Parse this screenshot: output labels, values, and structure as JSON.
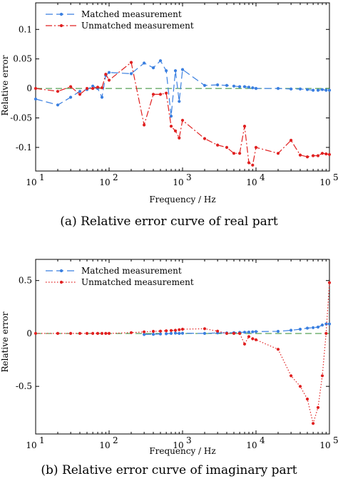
{
  "colors": {
    "matched": "#3a7fe0",
    "unmatched": "#e02020",
    "reference": "#2e8b2e"
  },
  "chart_data": [
    {
      "type": "line",
      "caption": "(a) Relative error curve of real part",
      "xlabel": "Frequency / Hz",
      "ylabel": "Relative error",
      "xscale": "log",
      "xlim": [
        10,
        100000
      ],
      "ylim": [
        -0.14,
        0.145
      ],
      "x_tick_labels": [
        {
          "value": 10,
          "base": "10",
          "exp": "1"
        },
        {
          "value": 100,
          "base": "10",
          "exp": "2"
        },
        {
          "value": 1000,
          "base": "10",
          "exp": "3"
        },
        {
          "value": 10000,
          "base": "10",
          "exp": "4"
        },
        {
          "value": 100000,
          "base": "10",
          "exp": "5"
        }
      ],
      "y_tick_labels": [
        "0.1",
        "0.05",
        "0",
        "-0.05",
        "-0.1"
      ],
      "y_tick_values": [
        0.1,
        0.05,
        0,
        -0.05,
        -0.1
      ],
      "reference_line_y": 0,
      "legend_position": "top-left",
      "series": [
        {
          "name": "Matched measurement",
          "style": "dashed",
          "x": [
            10,
            20,
            30,
            40,
            50,
            60,
            70,
            80,
            90,
            100,
            200,
            300,
            400,
            500,
            600,
            700,
            800,
            900,
            1000,
            2000,
            3000,
            4000,
            5000,
            6000,
            7000,
            8000,
            9000,
            10000,
            20000,
            30000,
            40000,
            50000,
            60000,
            70000,
            80000,
            90000,
            100000
          ],
          "y": [
            -0.018,
            -0.028,
            -0.015,
            -0.005,
            -0.002,
            0.004,
            0.0,
            -0.015,
            0.022,
            0.027,
            0.025,
            0.043,
            0.035,
            0.047,
            0.03,
            -0.047,
            0.03,
            -0.022,
            0.032,
            0.005,
            0.006,
            0.005,
            0.004,
            0.003,
            0.003,
            0.002,
            0.001,
            0.0,
            0.0,
            -0.001,
            -0.001,
            -0.002,
            -0.003,
            -0.003,
            -0.002,
            -0.003,
            -0.003
          ],
          "marker": "dot"
        },
        {
          "name": "Unmatched measurement",
          "style": "dash-dot",
          "x": [
            10,
            20,
            30,
            40,
            50,
            60,
            70,
            80,
            90,
            100,
            200,
            300,
            400,
            500,
            600,
            700,
            800,
            900,
            1000,
            2000,
            3000,
            4000,
            5000,
            6000,
            7000,
            8000,
            9000,
            10000,
            20000,
            30000,
            40000,
            50000,
            60000,
            70000,
            80000,
            90000,
            100000
          ],
          "y": [
            0.0,
            -0.005,
            0.003,
            -0.01,
            0.0,
            0.0,
            0.002,
            0.001,
            0.024,
            0.014,
            0.044,
            -0.062,
            -0.01,
            -0.01,
            -0.008,
            -0.064,
            -0.072,
            -0.084,
            -0.054,
            -0.085,
            -0.096,
            -0.1,
            -0.11,
            -0.11,
            -0.064,
            -0.126,
            -0.13,
            -0.1,
            -0.11,
            -0.088,
            -0.113,
            -0.116,
            -0.114,
            -0.114,
            -0.11,
            -0.111,
            -0.112
          ],
          "marker": "dot"
        }
      ]
    },
    {
      "type": "line",
      "caption": "(b) Relative error curve of imaginary part",
      "xlabel": "Frequency / Hz",
      "ylabel": "Relative error",
      "xscale": "log",
      "xlim": [
        10,
        100000
      ],
      "ylim": [
        -0.95,
        0.7
      ],
      "x_tick_labels": [
        {
          "value": 10,
          "base": "10",
          "exp": "1"
        },
        {
          "value": 100,
          "base": "10",
          "exp": "2"
        },
        {
          "value": 1000,
          "base": "10",
          "exp": "3"
        },
        {
          "value": 10000,
          "base": "10",
          "exp": "4"
        },
        {
          "value": 100000,
          "base": "10",
          "exp": "5"
        }
      ],
      "y_tick_labels": [
        "0.5",
        "0",
        "-0.5"
      ],
      "y_tick_values": [
        0.5,
        0,
        -0.5
      ],
      "reference_line_y": 0,
      "legend_position": "top-left",
      "series": [
        {
          "name": "Matched measurement",
          "style": "dashed",
          "x": [
            300,
            400,
            500,
            600,
            700,
            800,
            900,
            1000,
            2000,
            3000,
            4000,
            5000,
            6000,
            7000,
            8000,
            9000,
            10000,
            20000,
            30000,
            40000,
            50000,
            60000,
            70000,
            80000,
            90000,
            100000
          ],
          "y": [
            -0.01,
            -0.008,
            -0.005,
            -0.003,
            0.0,
            0.003,
            0.0,
            0.002,
            0.0,
            0.005,
            0.005,
            0.008,
            0.01,
            0.012,
            0.013,
            0.015,
            0.018,
            0.02,
            0.03,
            0.04,
            0.05,
            0.055,
            0.06,
            0.08,
            0.09,
            0.09
          ],
          "marker": "dot"
        },
        {
          "name": "Unmatched measurement",
          "style": "dotted",
          "x": [
            10,
            20,
            30,
            40,
            50,
            60,
            70,
            80,
            90,
            100,
            200,
            300,
            400,
            500,
            600,
            700,
            800,
            900,
            1000,
            2000,
            3000,
            4000,
            5000,
            6000,
            7000,
            8000,
            9000,
            10000,
            20000,
            30000,
            40000,
            50000,
            60000,
            70000,
            80000,
            90000,
            100000
          ],
          "y": [
            0.0,
            0.0,
            0.0,
            0.0,
            0.0,
            0.0,
            0.0,
            0.0,
            0.0,
            0.0,
            0.008,
            0.015,
            0.02,
            0.022,
            0.025,
            0.028,
            0.03,
            0.035,
            0.04,
            0.045,
            0.022,
            0.0,
            0.0,
            0.0,
            -0.1,
            -0.03,
            -0.05,
            -0.06,
            -0.15,
            -0.4,
            -0.5,
            -0.62,
            -0.85,
            -0.7,
            -0.4,
            0.0,
            0.48
          ],
          "marker": "dot"
        }
      ]
    }
  ]
}
